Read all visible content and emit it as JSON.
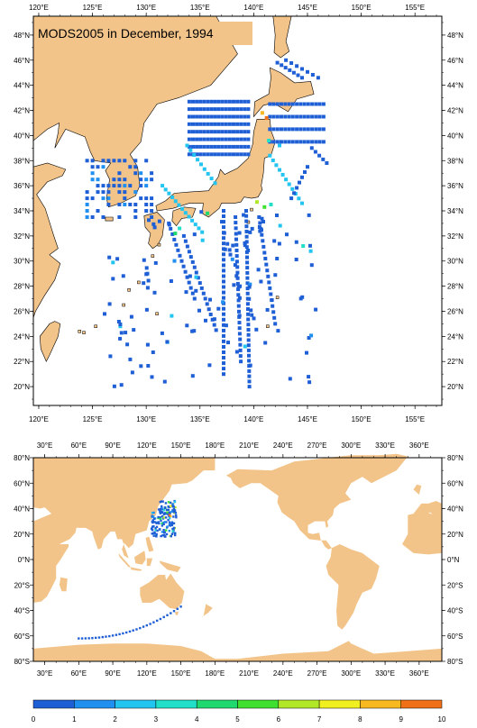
{
  "title": "MODS2005 in December, 1994",
  "colors": {
    "land": "#f2c48a",
    "ocean": "#ffffff",
    "coast": "#000000"
  },
  "upper_map": {
    "lon_range": [
      119.5,
      157.5
    ],
    "lat_range": [
      18.5,
      49.5
    ],
    "lon_ticks": [
      120,
      125,
      130,
      135,
      140,
      145,
      150,
      155
    ],
    "lat_ticks": [
      20,
      22,
      24,
      26,
      28,
      30,
      32,
      34,
      36,
      38,
      40,
      42,
      44,
      46,
      48
    ],
    "lon_labels": [
      "120°E",
      "125°E",
      "130°E",
      "135°E",
      "140°E",
      "145°E",
      "150°E",
      "155°E"
    ],
    "lat_labels": [
      "20°N",
      "22°N",
      "24°N",
      "26°N",
      "28°N",
      "30°N",
      "32°N",
      "34°N",
      "36°N",
      "38°N",
      "40°N",
      "42°N",
      "44°N",
      "46°N",
      "48°N"
    ]
  },
  "lower_map": {
    "lon_range": [
      20,
      380
    ],
    "lat_range": [
      -80,
      80
    ],
    "lon_ticks": [
      30,
      60,
      90,
      120,
      150,
      180,
      210,
      240,
      270,
      300,
      330,
      360
    ],
    "lat_ticks": [
      -80,
      -60,
      -40,
      -20,
      0,
      20,
      40,
      60,
      80
    ],
    "lon_labels": [
      "30°E",
      "60°E",
      "90°E",
      "120°E",
      "150°E",
      "180°E",
      "210°E",
      "240°E",
      "270°E",
      "300°E",
      "330°E",
      "360°E"
    ],
    "lat_labels": [
      "80°S",
      "60°S",
      "40°S",
      "20°S",
      "0°N",
      "20°N",
      "40°N",
      "60°N",
      "80°N"
    ]
  },
  "colorbar": {
    "labels": [
      "0",
      "1",
      "2",
      "3",
      "4",
      "5",
      "6",
      "7",
      "8",
      "9",
      "10"
    ],
    "colors": [
      "#1f5fd6",
      "#1f8ff0",
      "#22c4f0",
      "#22e0c8",
      "#20d870",
      "#40e030",
      "#b0e828",
      "#f0f020",
      "#f8b820",
      "#f07018"
    ]
  }
}
